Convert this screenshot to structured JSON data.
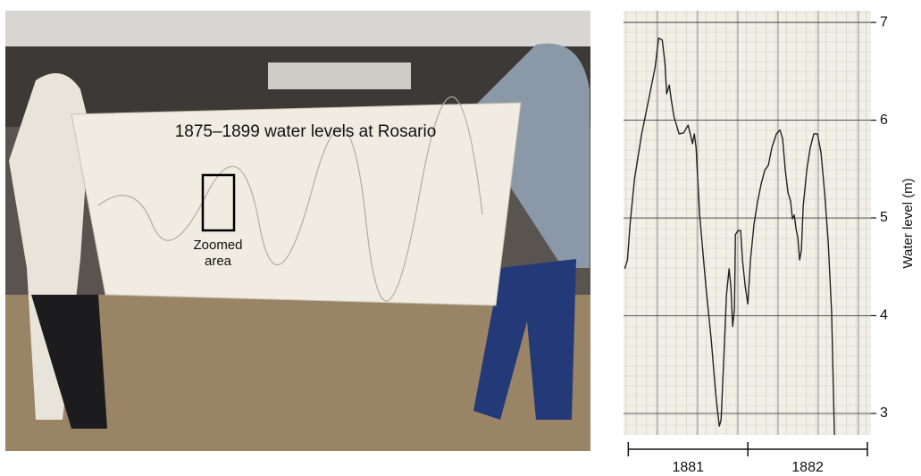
{
  "photo": {
    "title": "1875–1899 water levels at Rosario",
    "inset_label": [
      "Zoomed",
      "area"
    ]
  },
  "chart_data": {
    "type": "line",
    "ylabel": "Water level (m)",
    "ylim": [
      2.78,
      7.12
    ],
    "yticks": [
      3,
      4,
      5,
      6,
      7
    ],
    "xlim": [
      1880.96,
      1883.03
    ],
    "xticks": [
      1881,
      1882,
      1883
    ],
    "periods": [
      "1881",
      "1882"
    ],
    "x": [
      1880.97,
      1880.993,
      1881.015,
      1881.052,
      1881.112,
      1881.172,
      1881.224,
      1881.254,
      1881.284,
      1881.306,
      1881.321,
      1881.343,
      1881.358,
      1881.381,
      1881.425,
      1881.463,
      1881.5,
      1881.522,
      1881.537,
      1881.552,
      1881.567,
      1881.597,
      1881.649,
      1881.694,
      1881.731,
      1881.761,
      1881.776,
      1881.799,
      1881.821,
      1881.843,
      1881.858,
      1881.873,
      1881.888,
      1881.896,
      1881.918,
      1881.94,
      1881.955,
      1881.978,
      1882.0,
      1882.022,
      1882.052,
      1882.082,
      1882.112,
      1882.142,
      1882.172,
      1882.201,
      1882.239,
      1882.269,
      1882.291,
      1882.313,
      1882.336,
      1882.358,
      1882.373,
      1882.388,
      1882.403,
      1882.418,
      1882.433,
      1882.448,
      1882.463,
      1882.493,
      1882.522,
      1882.552,
      1882.582,
      1882.612,
      1882.642,
      1882.672,
      1882.701,
      1882.724
    ],
    "series": [
      {
        "color": "#222222",
        "values": [
          4.48,
          4.57,
          4.94,
          5.4,
          5.86,
          6.22,
          6.54,
          6.84,
          6.82,
          6.59,
          6.27,
          6.36,
          6.22,
          6.04,
          5.86,
          5.87,
          5.95,
          5.84,
          5.76,
          5.86,
          5.72,
          5.03,
          4.3,
          3.75,
          3.2,
          2.87,
          2.93,
          3.57,
          4.21,
          4.48,
          4.3,
          3.89,
          4.07,
          4.83,
          4.87,
          4.87,
          4.57,
          4.3,
          4.12,
          4.57,
          4.94,
          5.17,
          5.35,
          5.49,
          5.54,
          5.72,
          5.86,
          5.9,
          5.81,
          5.49,
          5.26,
          5.17,
          4.99,
          5.03,
          4.89,
          4.8,
          4.57,
          4.67,
          5.12,
          5.49,
          5.72,
          5.86,
          5.86,
          5.67,
          5.26,
          4.76,
          4.03,
          2.78
        ]
      }
    ]
  }
}
